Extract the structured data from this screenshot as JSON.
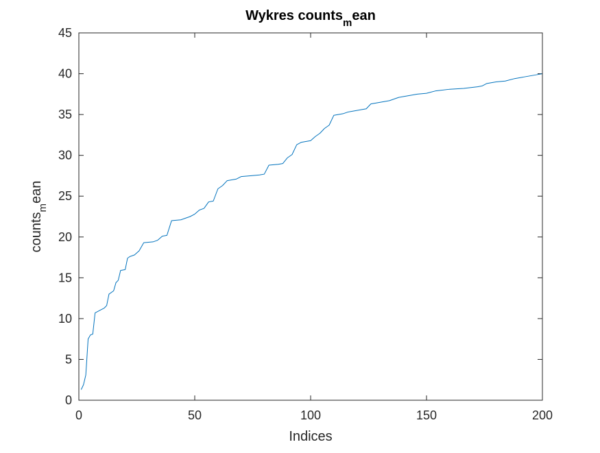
{
  "chart_data": {
    "type": "line",
    "title": {
      "pre": "Wykres counts",
      "sub": "m",
      "post": "ean"
    },
    "xlabel": "Indices",
    "ylabel": {
      "pre": "counts",
      "sub": "m",
      "post": "ean"
    },
    "xlim": [
      0,
      200
    ],
    "ylim": [
      0,
      45
    ],
    "xticks": [
      0,
      50,
      100,
      150,
      200
    ],
    "yticks": [
      0,
      5,
      10,
      15,
      20,
      25,
      30,
      35,
      40,
      45
    ],
    "xtick_labels": [
      "0",
      "50",
      "100",
      "150",
      "200"
    ],
    "ytick_labels": [
      "0",
      "5",
      "10",
      "15",
      "20",
      "25",
      "30",
      "35",
      "40",
      "45"
    ],
    "grid": false,
    "box": true,
    "line_color": "#0072BD",
    "series": [
      {
        "points": [
          [
            1,
            1.3
          ],
          [
            2,
            1.9
          ],
          [
            3,
            3.1
          ],
          [
            4,
            7.5
          ],
          [
            5,
            8.0
          ],
          [
            6,
            8.1
          ],
          [
            7,
            10.7
          ],
          [
            9,
            11.0
          ],
          [
            11,
            11.3
          ],
          [
            12,
            11.6
          ],
          [
            13,
            13.0
          ],
          [
            15,
            13.4
          ],
          [
            16,
            14.4
          ],
          [
            17,
            14.7
          ],
          [
            18,
            15.9
          ],
          [
            20,
            16.0
          ],
          [
            21,
            17.4
          ],
          [
            22,
            17.6
          ],
          [
            24,
            17.8
          ],
          [
            26,
            18.3
          ],
          [
            28,
            19.3
          ],
          [
            32,
            19.4
          ],
          [
            34,
            19.6
          ],
          [
            36,
            20.1
          ],
          [
            38,
            20.2
          ],
          [
            40,
            22.0
          ],
          [
            44,
            22.1
          ],
          [
            46,
            22.3
          ],
          [
            48,
            22.5
          ],
          [
            50,
            22.8
          ],
          [
            52,
            23.3
          ],
          [
            54,
            23.5
          ],
          [
            56,
            24.3
          ],
          [
            58,
            24.4
          ],
          [
            60,
            25.9
          ],
          [
            62,
            26.3
          ],
          [
            64,
            26.9
          ],
          [
            68,
            27.1
          ],
          [
            70,
            27.4
          ],
          [
            74,
            27.5
          ],
          [
            78,
            27.6
          ],
          [
            80,
            27.7
          ],
          [
            82,
            28.8
          ],
          [
            86,
            28.9
          ],
          [
            88,
            29.0
          ],
          [
            90,
            29.7
          ],
          [
            92,
            30.1
          ],
          [
            94,
            31.3
          ],
          [
            96,
            31.6
          ],
          [
            100,
            31.8
          ],
          [
            102,
            32.3
          ],
          [
            104,
            32.7
          ],
          [
            106,
            33.3
          ],
          [
            108,
            33.7
          ],
          [
            110,
            34.9
          ],
          [
            114,
            35.1
          ],
          [
            116,
            35.3
          ],
          [
            120,
            35.5
          ],
          [
            124,
            35.7
          ],
          [
            126,
            36.3
          ],
          [
            130,
            36.5
          ],
          [
            134,
            36.7
          ],
          [
            138,
            37.1
          ],
          [
            142,
            37.3
          ],
          [
            146,
            37.5
          ],
          [
            150,
            37.6
          ],
          [
            154,
            37.9
          ],
          [
            160,
            38.1
          ],
          [
            166,
            38.2
          ],
          [
            172,
            38.4
          ],
          [
            174,
            38.5
          ],
          [
            176,
            38.8
          ],
          [
            180,
            39.0
          ],
          [
            184,
            39.1
          ],
          [
            188,
            39.4
          ],
          [
            192,
            39.6
          ],
          [
            196,
            39.8
          ],
          [
            200,
            40.0
          ]
        ]
      }
    ]
  }
}
